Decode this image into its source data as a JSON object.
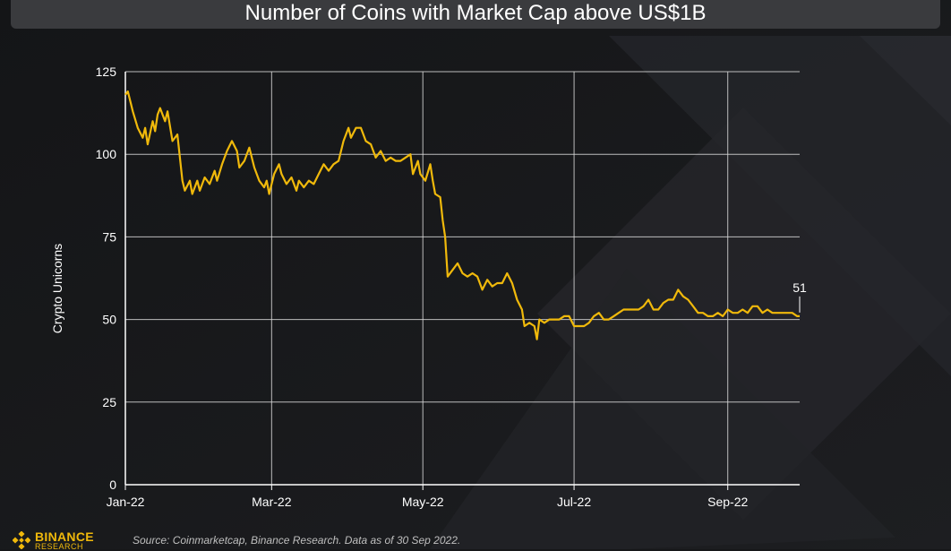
{
  "chart_data": {
    "type": "line",
    "title": "Number of Coins with Market Cap above US$1B",
    "ylabel": "Crypto Unicorns",
    "xlabel": "",
    "ylim": [
      0,
      125
    ],
    "yticks": [
      0,
      25,
      50,
      75,
      100,
      125
    ],
    "x_tick_labels": [
      "Jan-22",
      "Mar-22",
      "May-22",
      "Jul-22",
      "Sep-22"
    ],
    "x_tick_dates": [
      "2022-01-01",
      "2022-03-01",
      "2022-05-01",
      "2022-07-01",
      "2022-09-01"
    ],
    "grid": true,
    "line_color": "#f0b90b",
    "end_label": "51",
    "series": [
      {
        "points": [
          [
            "2022-01-01",
            118
          ],
          [
            "2022-01-02",
            119
          ],
          [
            "2022-01-04",
            113
          ],
          [
            "2022-01-06",
            108
          ],
          [
            "2022-01-08",
            105
          ],
          [
            "2022-01-09",
            108
          ],
          [
            "2022-01-10",
            103
          ],
          [
            "2022-01-12",
            110
          ],
          [
            "2022-01-13",
            107
          ],
          [
            "2022-01-14",
            112
          ],
          [
            "2022-01-15",
            114
          ],
          [
            "2022-01-17",
            110
          ],
          [
            "2022-01-18",
            113
          ],
          [
            "2022-01-20",
            104
          ],
          [
            "2022-01-22",
            106
          ],
          [
            "2022-01-24",
            92
          ],
          [
            "2022-01-25",
            89
          ],
          [
            "2022-01-27",
            92
          ],
          [
            "2022-01-28",
            88
          ],
          [
            "2022-01-30",
            92
          ],
          [
            "2022-01-31",
            89
          ],
          [
            "2022-02-02",
            93
          ],
          [
            "2022-02-04",
            91
          ],
          [
            "2022-02-06",
            95
          ],
          [
            "2022-02-07",
            92
          ],
          [
            "2022-02-09",
            97
          ],
          [
            "2022-02-11",
            101
          ],
          [
            "2022-02-13",
            104
          ],
          [
            "2022-02-15",
            101
          ],
          [
            "2022-02-16",
            96
          ],
          [
            "2022-02-18",
            98
          ],
          [
            "2022-02-20",
            102
          ],
          [
            "2022-02-22",
            96
          ],
          [
            "2022-02-24",
            92
          ],
          [
            "2022-02-26",
            90
          ],
          [
            "2022-02-27",
            92
          ],
          [
            "2022-02-28",
            88
          ],
          [
            "2022-03-02",
            94
          ],
          [
            "2022-03-04",
            97
          ],
          [
            "2022-03-05",
            94
          ],
          [
            "2022-03-07",
            91
          ],
          [
            "2022-03-09",
            93
          ],
          [
            "2022-03-11",
            89
          ],
          [
            "2022-03-12",
            92
          ],
          [
            "2022-03-14",
            90
          ],
          [
            "2022-03-16",
            92
          ],
          [
            "2022-03-18",
            91
          ],
          [
            "2022-03-20",
            94
          ],
          [
            "2022-03-22",
            97
          ],
          [
            "2022-03-24",
            95
          ],
          [
            "2022-03-26",
            97
          ],
          [
            "2022-03-28",
            98
          ],
          [
            "2022-03-30",
            104
          ],
          [
            "2022-04-01",
            108
          ],
          [
            "2022-04-02",
            105
          ],
          [
            "2022-04-04",
            108
          ],
          [
            "2022-04-06",
            108
          ],
          [
            "2022-04-08",
            104
          ],
          [
            "2022-04-10",
            103
          ],
          [
            "2022-04-12",
            99
          ],
          [
            "2022-04-14",
            101
          ],
          [
            "2022-04-16",
            98
          ],
          [
            "2022-04-18",
            99
          ],
          [
            "2022-04-20",
            98
          ],
          [
            "2022-04-22",
            98
          ],
          [
            "2022-04-24",
            99
          ],
          [
            "2022-04-26",
            100
          ],
          [
            "2022-04-27",
            94
          ],
          [
            "2022-04-29",
            98
          ],
          [
            "2022-04-30",
            94
          ],
          [
            "2022-05-02",
            92
          ],
          [
            "2022-05-04",
            97
          ],
          [
            "2022-05-05",
            92
          ],
          [
            "2022-05-06",
            88
          ],
          [
            "2022-05-08",
            87
          ],
          [
            "2022-05-09",
            80
          ],
          [
            "2022-05-10",
            75
          ],
          [
            "2022-05-11",
            63
          ],
          [
            "2022-05-13",
            65
          ],
          [
            "2022-05-15",
            67
          ],
          [
            "2022-05-17",
            64
          ],
          [
            "2022-05-19",
            63
          ],
          [
            "2022-05-21",
            64
          ],
          [
            "2022-05-23",
            63
          ],
          [
            "2022-05-25",
            59
          ],
          [
            "2022-05-27",
            62
          ],
          [
            "2022-05-29",
            60
          ],
          [
            "2022-05-31",
            61
          ],
          [
            "2022-06-02",
            61
          ],
          [
            "2022-06-04",
            64
          ],
          [
            "2022-06-06",
            61
          ],
          [
            "2022-06-08",
            56
          ],
          [
            "2022-06-10",
            53
          ],
          [
            "2022-06-11",
            48
          ],
          [
            "2022-06-13",
            49
          ],
          [
            "2022-06-15",
            48
          ],
          [
            "2022-06-16",
            44
          ],
          [
            "2022-06-17",
            50
          ],
          [
            "2022-06-19",
            49
          ],
          [
            "2022-06-21",
            50
          ],
          [
            "2022-06-23",
            50
          ],
          [
            "2022-06-25",
            50
          ],
          [
            "2022-06-27",
            51
          ],
          [
            "2022-06-29",
            51
          ],
          [
            "2022-07-01",
            48
          ],
          [
            "2022-07-03",
            48
          ],
          [
            "2022-07-05",
            48
          ],
          [
            "2022-07-07",
            49
          ],
          [
            "2022-07-09",
            51
          ],
          [
            "2022-07-11",
            52
          ],
          [
            "2022-07-13",
            50
          ],
          [
            "2022-07-15",
            50
          ],
          [
            "2022-07-17",
            51
          ],
          [
            "2022-07-19",
            52
          ],
          [
            "2022-07-21",
            53
          ],
          [
            "2022-07-23",
            53
          ],
          [
            "2022-07-25",
            53
          ],
          [
            "2022-07-27",
            53
          ],
          [
            "2022-07-29",
            54
          ],
          [
            "2022-07-31",
            56
          ],
          [
            "2022-08-02",
            53
          ],
          [
            "2022-08-04",
            53
          ],
          [
            "2022-08-06",
            55
          ],
          [
            "2022-08-08",
            56
          ],
          [
            "2022-08-10",
            56
          ],
          [
            "2022-08-12",
            59
          ],
          [
            "2022-08-14",
            57
          ],
          [
            "2022-08-16",
            56
          ],
          [
            "2022-08-18",
            54
          ],
          [
            "2022-08-20",
            52
          ],
          [
            "2022-08-22",
            52
          ],
          [
            "2022-08-24",
            51
          ],
          [
            "2022-08-26",
            51
          ],
          [
            "2022-08-28",
            52
          ],
          [
            "2022-08-30",
            51
          ],
          [
            "2022-09-01",
            53
          ],
          [
            "2022-09-03",
            52
          ],
          [
            "2022-09-05",
            52
          ],
          [
            "2022-09-07",
            53
          ],
          [
            "2022-09-09",
            52
          ],
          [
            "2022-09-11",
            54
          ],
          [
            "2022-09-13",
            54
          ],
          [
            "2022-09-15",
            52
          ],
          [
            "2022-09-17",
            53
          ],
          [
            "2022-09-19",
            52
          ],
          [
            "2022-09-21",
            52
          ],
          [
            "2022-09-23",
            52
          ],
          [
            "2022-09-25",
            52
          ],
          [
            "2022-09-27",
            52
          ],
          [
            "2022-09-29",
            51
          ],
          [
            "2022-09-30",
            51
          ]
        ]
      }
    ]
  },
  "footer": {
    "source": "Source: Coinmarketcap, Binance Research. Data as of 30 Sep 2022.",
    "logo_main": "BINANCE",
    "logo_sub": "RESEARCH"
  }
}
